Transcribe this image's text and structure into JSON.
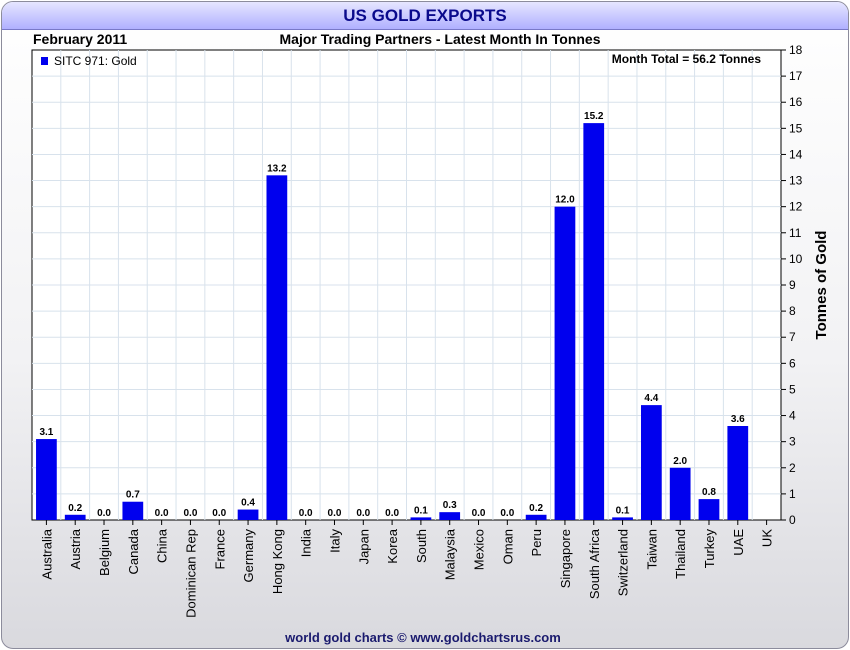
{
  "header": {
    "title": "US GOLD EXPORTS",
    "date": "February 2011",
    "subtitle": "Major Trading Partners - Latest Month In Tonnes"
  },
  "footer": {
    "credit": "world gold charts © www.goldchartsrus.com"
  },
  "colors": {
    "bar": "#0000ee",
    "title_text": "#0a0a8c",
    "grid": "#d8e2ec"
  },
  "chart_data": {
    "type": "bar",
    "title": "US GOLD EXPORTS",
    "subtitle": "Major Trading Partners - Latest Month In Tonnes",
    "ylabel": "Tonnes of Gold",
    "xlabel": "",
    "ylim": [
      0,
      18
    ],
    "yticks": [
      0,
      1,
      2,
      3,
      4,
      5,
      6,
      7,
      8,
      9,
      10,
      11,
      12,
      13,
      14,
      15,
      16,
      17,
      18
    ],
    "legend": {
      "label": "SITC 971: Gold",
      "position": "top-left"
    },
    "annotation": "Month Total = 56.2 Tonnes",
    "categories": [
      "Australia",
      "Austria",
      "Belgium",
      "Canada",
      "China",
      "Dominican Rep",
      "France",
      "Germany",
      "Hong Kong",
      "India",
      "Italy",
      "Japan",
      "Korea",
      "South",
      "Malaysia",
      "Mexico",
      "Oman",
      "Peru",
      "Singapore",
      "South Africa",
      "Switzerland",
      "Taiwan",
      "Thailand",
      "Turkey",
      "UAE",
      "UK"
    ],
    "values": [
      3.1,
      0.2,
      0.0,
      0.7,
      0.0,
      0.0,
      0.0,
      0.4,
      13.2,
      0.0,
      0.0,
      0.0,
      0.0,
      0.1,
      0.3,
      0.0,
      0.0,
      0.2,
      12.0,
      15.2,
      0.1,
      4.4,
      2.0,
      0.8,
      3.6,
      null
    ],
    "value_labels": [
      "3.1",
      "0.2",
      "0.0",
      "0.7",
      "0.0",
      "0.0",
      "0.0",
      "0.4",
      "13.2",
      "0.0",
      "0.0",
      "0.0",
      "0.0",
      "0.1",
      "0.3",
      "0.0",
      "0.0",
      "0.2",
      "12.0",
      "15.2",
      "0.1",
      "4.4",
      "2.0",
      "0.8",
      "3.6",
      ""
    ]
  }
}
